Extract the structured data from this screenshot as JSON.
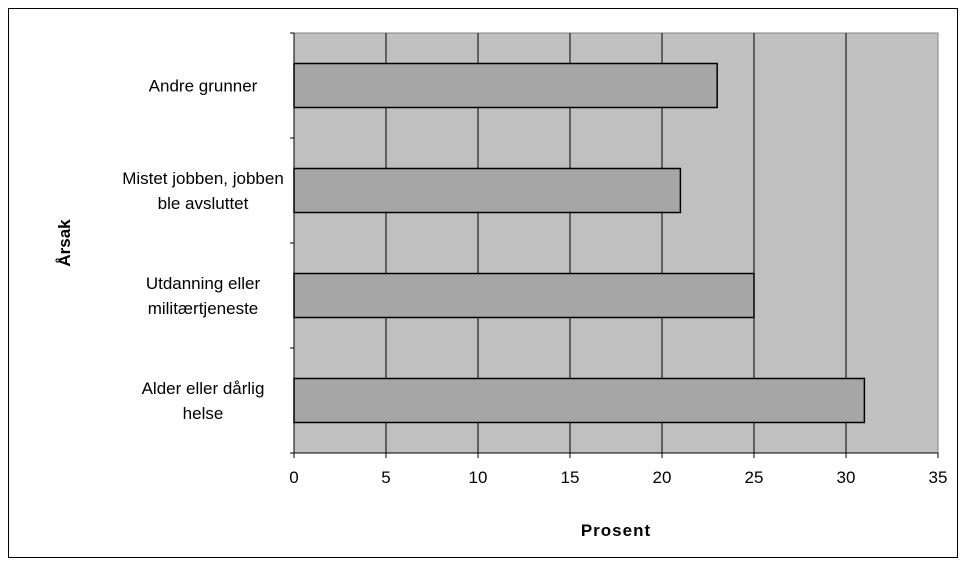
{
  "chart_data": {
    "type": "bar",
    "orientation": "horizontal",
    "categories": [
      [
        "Andre grunner"
      ],
      [
        "Mistet jobben, jobben",
        "ble avsluttet"
      ],
      [
        "Utdanning eller",
        "militærtjeneste"
      ],
      [
        "Alder eller dårlig",
        "helse"
      ]
    ],
    "values": [
      23,
      21,
      25,
      31
    ],
    "xlabel": "Prosent",
    "ylabel": "Årsak",
    "xlim": [
      0,
      35
    ],
    "xticks": [
      "0",
      "5",
      "10",
      "15",
      "20",
      "25",
      "30",
      "35"
    ],
    "grid": true,
    "legend": "none",
    "colors": {
      "plot_background": "#c0c0c0",
      "bar_fill": "#a6a6a6",
      "bar_stroke": "#000000",
      "gridline": "#000000"
    }
  }
}
